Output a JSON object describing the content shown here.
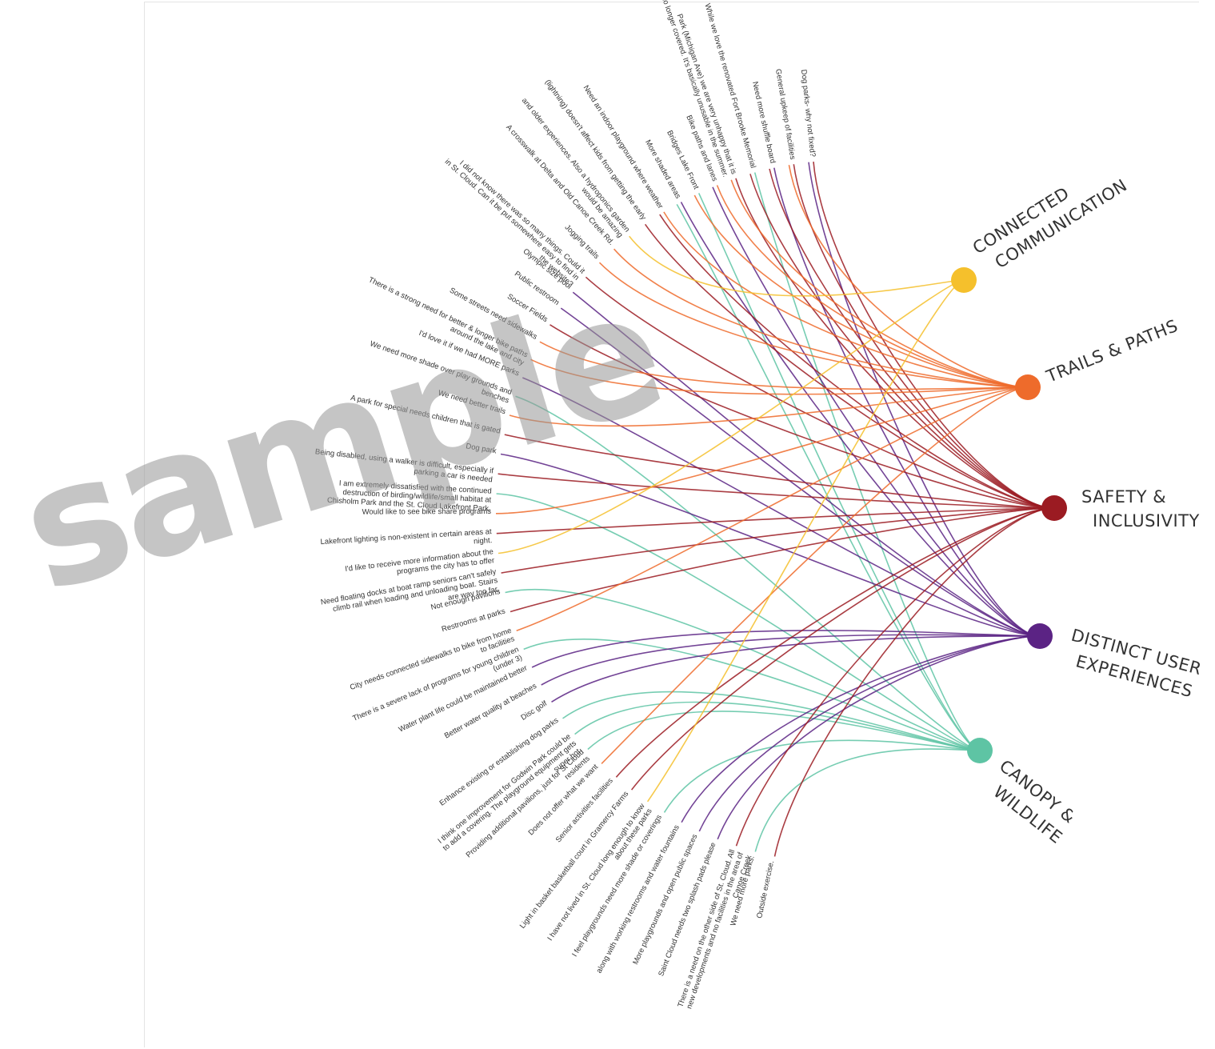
{
  "themes": [
    {
      "id": "connected",
      "lines": [
        "CONNECTED",
        "COMMUNICATION"
      ],
      "color": "#f5c02c"
    },
    {
      "id": "trails",
      "lines": [
        "TRAILS & PATHS"
      ],
      "color": "#ee6b2b"
    },
    {
      "id": "safety",
      "lines": [
        "SAFETY &",
        "INCLUSIVITY"
      ],
      "color": "#9b1b22"
    },
    {
      "id": "distinct",
      "lines": [
        "DISTINCT USER",
        "EXPERIENCES"
      ],
      "color": "#5b2384"
    },
    {
      "id": "canopy",
      "lines": [
        "CANOPY &",
        "WILDLIFE"
      ],
      "color": "#5ec4a4"
    }
  ],
  "comments": [
    {
      "lines": [
        "Dog parks- why not fixed?"
      ],
      "themes": [
        "safety",
        "distinct"
      ]
    },
    {
      "lines": [
        "General upkeep of facilities"
      ],
      "themes": [
        "safety",
        "trails"
      ]
    },
    {
      "lines": [
        "Need more shuffle board"
      ],
      "themes": [
        "distinct",
        "safety"
      ]
    },
    {
      "lines": [
        "While we love the renovated Fort Brooke Memorial"
      ],
      "themes": [
        "canopy",
        "safety"
      ]
    },
    {
      "lines": [
        "Park (Michigan Ave) we are very unhappy that it is",
        "no longer covered. It's basically unusable in the summer."
      ],
      "themes": [
        "safety",
        "trails"
      ]
    },
    {
      "lines": [
        "Bike paths and lanes"
      ],
      "themes": [
        "trails",
        "distinct"
      ]
    },
    {
      "lines": [
        "Bridges Lake Front"
      ],
      "themes": [
        "canopy",
        "trails"
      ]
    },
    {
      "lines": [
        "More shaded areas"
      ],
      "themes": [
        "distinct",
        "canopy"
      ]
    },
    {
      "lines": [
        "Need an indoor playground where weather"
      ],
      "themes": [
        "trails",
        "safety"
      ]
    },
    {
      "lines": [
        "(lightning) doesn't affect kids from getting the early"
      ],
      "themes": [
        "safety"
      ]
    },
    {
      "lines": [
        "and older experiences. Also a hydroponics garden",
        "would be amazing"
      ],
      "themes": [
        "connected"
      ]
    },
    {
      "lines": [
        "A crosswalk at Delta and Old Canoe Creek Rd."
      ],
      "themes": [
        "trails"
      ]
    },
    {
      "lines": [
        "Jogging trails"
      ],
      "themes": [
        "trails"
      ]
    },
    {
      "lines": [
        "I did not know there was so many things. Could it",
        "in St. Cloud. Can it be put somewhere easy to find in",
        "the website?"
      ],
      "themes": [
        "safety"
      ]
    },
    {
      "lines": [
        "Olympic size pool"
      ],
      "themes": [
        "distinct"
      ]
    },
    {
      "lines": [
        "Public restroom"
      ],
      "themes": [
        "distinct"
      ]
    },
    {
      "lines": [
        "Soccer Fields"
      ],
      "themes": [
        "safety"
      ]
    },
    {
      "lines": [
        "Some streets need sidewalks"
      ],
      "themes": [
        "trails"
      ]
    },
    {
      "lines": [
        "There is a strong need for better & longer bike paths",
        "around the lake and city"
      ],
      "themes": [
        "trails"
      ]
    },
    {
      "lines": [
        "I'd love it if we had MORE parks"
      ],
      "themes": [
        "distinct"
      ]
    },
    {
      "lines": [
        "We need more shade over play grounds and",
        "benches"
      ],
      "themes": [
        "canopy"
      ]
    },
    {
      "lines": [
        "We need better trails"
      ],
      "themes": [
        "trails"
      ]
    },
    {
      "lines": [
        "A park for special needs children that is gated"
      ],
      "themes": [
        "safety"
      ]
    },
    {
      "lines": [
        "Dog park"
      ],
      "themes": [
        "distinct"
      ]
    },
    {
      "lines": [
        "Being disabled, using a walker is difficult, especially if",
        "parking a car is needed"
      ],
      "themes": [
        "safety"
      ]
    },
    {
      "lines": [
        "I am extremely dissatisfied with the continued",
        "destruction of birding/wildlife/small habitat at",
        "Chisholm Park and the St. Cloud Lakefront Park."
      ],
      "themes": [
        "canopy"
      ]
    },
    {
      "lines": [
        "Would like to see bike share programs"
      ],
      "themes": [
        "trails"
      ]
    },
    {
      "lines": [
        "Lakefront lighting is non-existent in certain areas at",
        "night."
      ],
      "themes": [
        "safety"
      ]
    },
    {
      "lines": [
        "I'd like to receive more information about the",
        "programs the city has to offer"
      ],
      "themes": [
        "connected"
      ]
    },
    {
      "lines": [
        "Need floating docks at boat ramp seniors can't safely",
        "climb rail when loading and unloading boat. Stairs",
        "are way too far."
      ],
      "themes": [
        "safety"
      ]
    },
    {
      "lines": [
        "Not enough pavilions"
      ],
      "themes": [
        "canopy"
      ]
    },
    {
      "lines": [
        "Restrooms at parks"
      ],
      "themes": [
        "safety"
      ]
    },
    {
      "lines": [
        "City needs connected sidewalks to bike from home",
        "to facilities"
      ],
      "themes": [
        "trails"
      ]
    },
    {
      "lines": [
        "There is a severe lack of programs for young children",
        "(under 3)"
      ],
      "themes": [
        "canopy"
      ]
    },
    {
      "lines": [
        "Water plant life could be maintained better"
      ],
      "themes": [
        "distinct"
      ]
    },
    {
      "lines": [
        "Better water quality at beaches"
      ],
      "themes": [
        "distinct"
      ]
    },
    {
      "lines": [
        "Disc golf"
      ],
      "themes": [
        "distinct"
      ]
    },
    {
      "lines": [
        "Enhance existing or establishing dog parks"
      ],
      "themes": [
        "canopy"
      ]
    },
    {
      "lines": [
        "I think one improvement for Godwin Park could be",
        "to add a covering. The playground equipment gets",
        "super hot."
      ],
      "themes": [
        "canopy"
      ]
    },
    {
      "lines": [
        "Providing additional pavilions, just for St Cloud",
        "residents"
      ],
      "themes": [
        "canopy"
      ]
    },
    {
      "lines": [
        "Does not offer what we want"
      ],
      "themes": [
        "trails"
      ]
    },
    {
      "lines": [
        "Senior activities facilities"
      ],
      "themes": [
        "safety"
      ]
    },
    {
      "lines": [
        "Light in basket basketball court in Gramercy Farms"
      ],
      "themes": [
        "safety"
      ]
    },
    {
      "lines": [
        "I have not lived in St. Cloud long enough to know",
        "about these parks"
      ],
      "themes": [
        "connected"
      ]
    },
    {
      "lines": [
        "I feel playgrounds need more shade or coverings"
      ],
      "themes": [
        "canopy"
      ]
    },
    {
      "lines": [
        "along with working restrooms and water fountains"
      ],
      "themes": [
        "distinct"
      ]
    },
    {
      "lines": [
        "More playgrounds and open public spaces"
      ],
      "themes": [
        "distinct"
      ]
    },
    {
      "lines": [
        "Saint Cloud needs two splash pads please"
      ],
      "themes": [
        "distinct"
      ]
    },
    {
      "lines": [
        "There is a need on the other side of St. Cloud. All",
        "new developments and no facilities in the area of",
        "Canoe Creek"
      ],
      "themes": [
        "safety"
      ]
    },
    {
      "lines": [
        "We need more parks."
      ],
      "themes": [
        "canopy"
      ]
    },
    {
      "lines": [
        "Outside exercise."
      ],
      "themes": [
        "safety"
      ]
    }
  ],
  "watermark": "sample"
}
